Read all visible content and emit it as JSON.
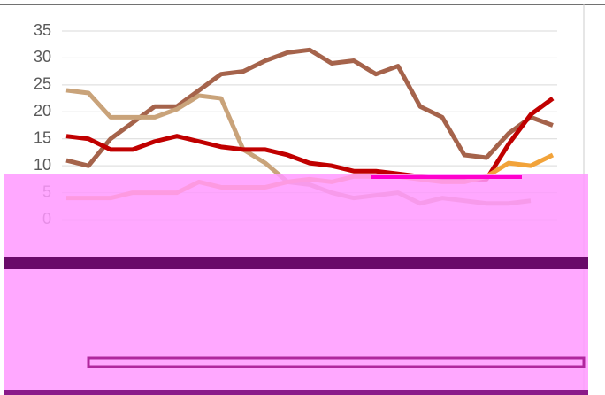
{
  "chart_data": {
    "type": "line",
    "categories": [
      null,
      null,
      null,
      null,
      null,
      null,
      null,
      null,
      null,
      null,
      null,
      null,
      null,
      null,
      null,
      null,
      null,
      null,
      null,
      null,
      null,
      null,
      null
    ],
    "series": [
      {
        "color": "#a5634b",
        "values": [
          11,
          10,
          15,
          18,
          21,
          21,
          24,
          27,
          27.5,
          29.5,
          31,
          31.5,
          29,
          29.5,
          27,
          28.5,
          21,
          19,
          12,
          11.5,
          16,
          19,
          17.5
        ]
      },
      {
        "color": "#c9a37a",
        "values": [
          24,
          23.5,
          19,
          19,
          19,
          20.5,
          23,
          22.5,
          13,
          10.5,
          7,
          6.5,
          5,
          4,
          4.5,
          5,
          3,
          4,
          3.5,
          3,
          3,
          3.5,
          null
        ]
      },
      {
        "color": "#c00000",
        "values": [
          15.5,
          15,
          13,
          13,
          14.5,
          15.5,
          14.5,
          13.5,
          13,
          13,
          12,
          10.5,
          10,
          9,
          9,
          8.5,
          8,
          7.5,
          7.5,
          7.5,
          14,
          19.5,
          22.5
        ]
      },
      {
        "color": "#f2a33a",
        "values": [
          4,
          4,
          4,
          5,
          5,
          5,
          7,
          6,
          6,
          6,
          7,
          7.5,
          7,
          8,
          8,
          8,
          7.5,
          7,
          7,
          8,
          10.5,
          10,
          12
        ]
      }
    ],
    "ylim": [
      0,
      35
    ],
    "yticks": [
      0,
      5,
      10,
      15,
      20,
      25,
      30,
      35
    ],
    "grid": true
  }
}
